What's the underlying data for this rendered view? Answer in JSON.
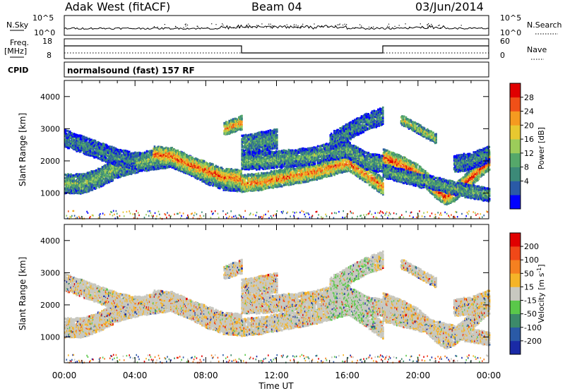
{
  "header": {
    "station": "Adak West (fitACF)",
    "beam": "Beam 04",
    "date": "03/Jun/2014"
  },
  "top_panels": {
    "nsky_label": "N.Sky",
    "nsearch_label": "N.Search",
    "freq_label_1": "Freq.",
    "freq_label_2": "[MHz]",
    "nave_label": "Nave",
    "cpid_label": "CPID",
    "cpid_text": "normalsound (fast) 157 RF",
    "noise_ticks_left": [
      "10^5",
      "10^0"
    ],
    "noise_ticks_right": [
      "10^5",
      "10^0"
    ],
    "freq_ticks": [
      "18",
      "8"
    ],
    "nave_ticks": [
      "60",
      "0"
    ]
  },
  "chart_data": [
    {
      "type": "heatmap",
      "panel": "power",
      "ylabel": "Slant Range [km]",
      "y_ticks": [
        "4000",
        "3000",
        "2000",
        "1000"
      ],
      "ylim": [
        200,
        4500
      ],
      "colorbar_label": "Power [dB]",
      "colorbar_ticks": [
        "28",
        "24",
        "20",
        "16",
        "12",
        "8",
        "4"
      ],
      "colorbar_colors": [
        "#0000ff",
        "#2a5aa6",
        "#3c8a78",
        "#55a86a",
        "#9ccc5a",
        "#e8c830",
        "#f59a20",
        "#f05018",
        "#e00000"
      ],
      "bands": [
        {
          "t": [
            0,
            1,
            2,
            3,
            4,
            5,
            6,
            7,
            8,
            9,
            10
          ],
          "r": [
            1300,
            1300,
            1500,
            1800,
            1950,
            2050,
            2100,
            1900,
            1600,
            1400,
            1350
          ],
          "w": 300,
          "intensity": 0.45
        },
        {
          "t": [
            0,
            1,
            2,
            3,
            4
          ],
          "r": [
            2700,
            2500,
            2300,
            2100,
            2000
          ],
          "w": 250,
          "intensity": 0.3
        },
        {
          "t": [
            5,
            6,
            7,
            8,
            9,
            10
          ],
          "r": [
            2200,
            2150,
            1900,
            1700,
            1500,
            1450
          ],
          "w": 250,
          "intensity": 0.85
        },
        {
          "t": [
            10,
            11,
            12,
            13,
            14,
            15,
            16,
            17,
            18
          ],
          "r": [
            1300,
            1350,
            1450,
            1550,
            1650,
            1800,
            1950,
            1600,
            1200
          ],
          "w": 250,
          "intensity": 0.8
        },
        {
          "t": [
            10,
            11,
            12,
            13,
            14,
            15,
            16,
            17,
            18
          ],
          "r": [
            2000,
            2000,
            2050,
            2100,
            2150,
            2300,
            2350,
            2000,
            1900
          ],
          "w": 250,
          "intensity": 0.4
        },
        {
          "t": [
            15,
            16,
            17,
            18
          ],
          "r": [
            2600,
            2900,
            3200,
            3400
          ],
          "w": 250,
          "intensity": 0.3
        },
        {
          "t": [
            10,
            11,
            12
          ],
          "r": [
            2500,
            2600,
            2700
          ],
          "w": 300,
          "intensity": 0.35
        },
        {
          "t": [
            9,
            9.5,
            10
          ],
          "r": [
            3000,
            3100,
            3200
          ],
          "w": 200,
          "intensity": 0.75
        },
        {
          "t": [
            18,
            19,
            20,
            21,
            21.5,
            22,
            23,
            24
          ],
          "r": [
            2100,
            1900,
            1600,
            1100,
            900,
            1000,
            1500,
            2000
          ],
          "w": 250,
          "intensity": 0.9
        },
        {
          "t": [
            18,
            19,
            20,
            21,
            22,
            23,
            24
          ],
          "r": [
            1700,
            1550,
            1400,
            1300,
            1150,
            1050,
            950
          ],
          "w": 200,
          "intensity": 0.4
        },
        {
          "t": [
            19,
            20,
            21
          ],
          "r": [
            3300,
            3000,
            2700
          ],
          "w": 150,
          "intensity": 0.55
        },
        {
          "t": [
            22,
            23,
            24
          ],
          "r": [
            1900,
            2000,
            2200
          ],
          "w": 250,
          "intensity": 0.3
        }
      ]
    },
    {
      "type": "heatmap",
      "panel": "velocity",
      "xlabel": "Time UT",
      "ylabel": "Slant Range [km]",
      "x_ticks": [
        "00:00",
        "04:00",
        "08:00",
        "12:00",
        "16:00",
        "20:00",
        "00:00"
      ],
      "y_ticks": [
        "4000",
        "3000",
        "2000",
        "1000"
      ],
      "ylim": [
        200,
        4500
      ],
      "colorbar_label": "Velocity [m s",
      "colorbar_label_sup": "-1",
      "colorbar_label_end": "]",
      "colorbar_ticks": [
        "200",
        "100",
        "50",
        "15",
        "-15",
        "-50",
        "-100",
        "-200"
      ],
      "colorbar_colors": [
        "#1a2aa6",
        "#2a5aa6",
        "#3c8a6a",
        "#5ac84a",
        "#c8c8c0",
        "#f5b428",
        "#f58020",
        "#f04818",
        "#e00000"
      ]
    }
  ]
}
